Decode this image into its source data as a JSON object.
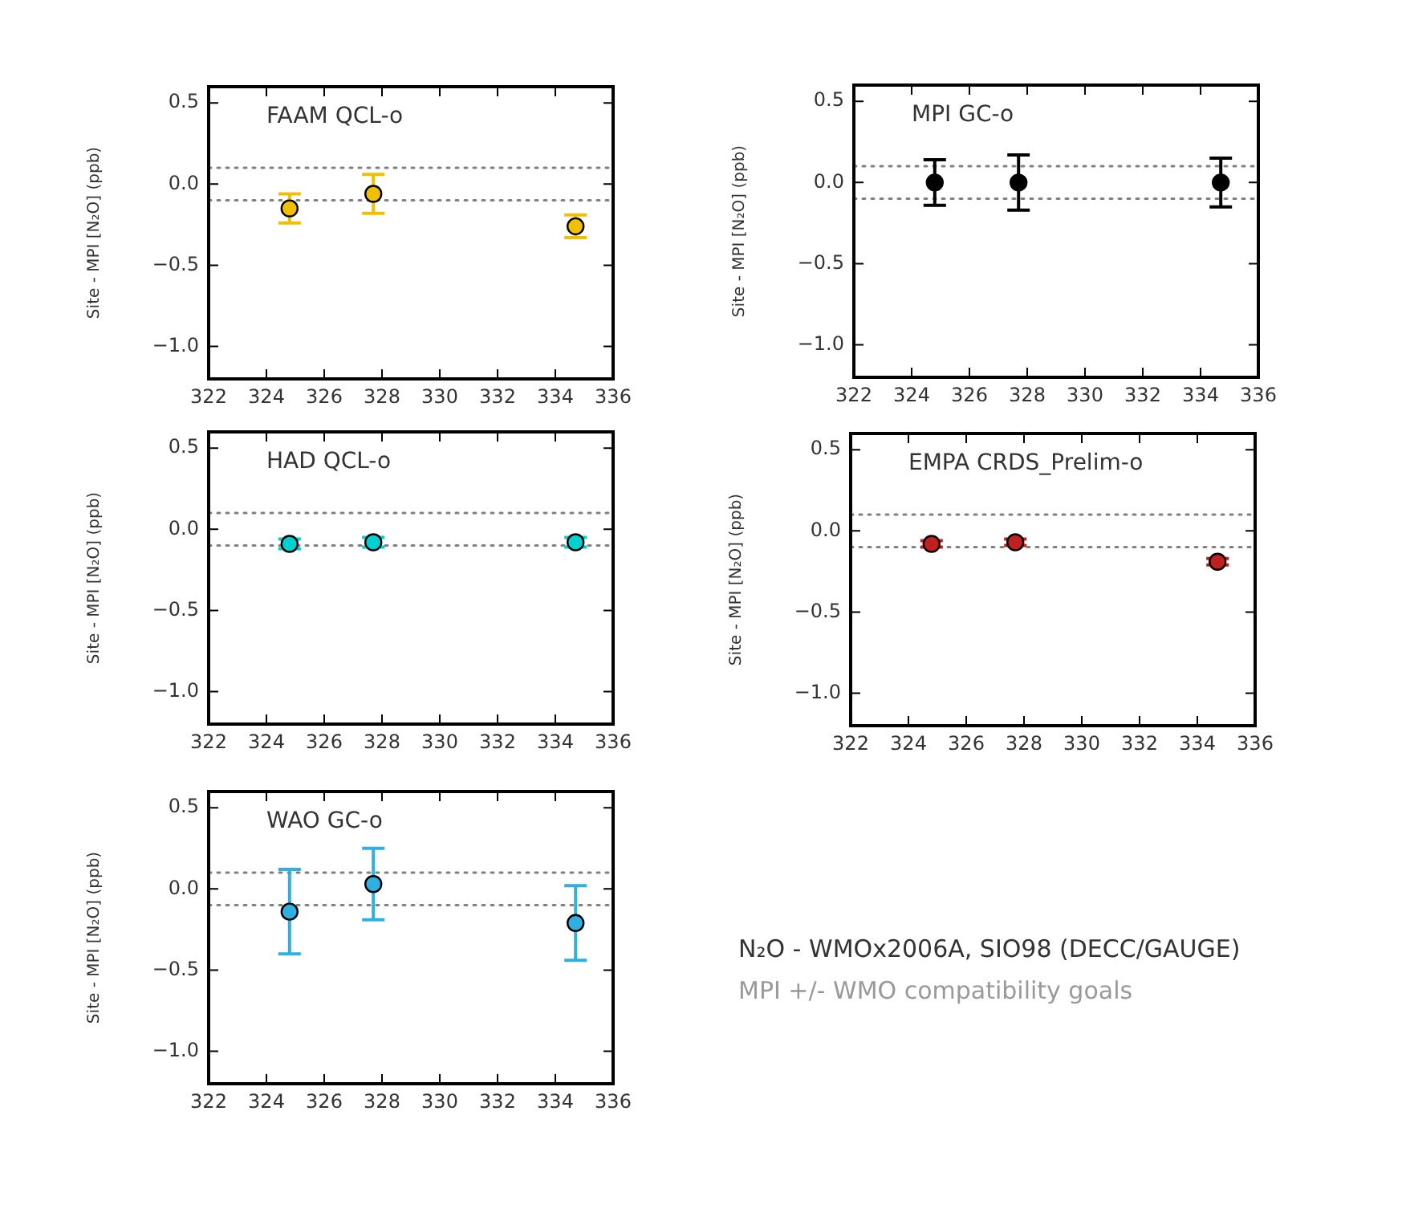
{
  "chart_data": [
    {
      "type": "scatter",
      "title": "FAAM QCL-o",
      "ylabel": "Site - MPI [N₂O] (ppb)",
      "x": [
        324.8,
        327.7,
        334.7
      ],
      "series": [
        {
          "color": "#f0c000",
          "values": [
            -0.15,
            -0.06,
            -0.26
          ],
          "errors": [
            0.09,
            0.12,
            0.07
          ]
        }
      ],
      "xlim": [
        322,
        336
      ],
      "xticks": [
        322,
        324,
        326,
        328,
        330,
        332,
        334,
        336
      ],
      "ylim": [
        -1.2,
        0.6
      ],
      "yticks": [
        {
          "value": -1,
          "label": "−1.0"
        },
        {
          "value": -0.5,
          "label": "−0.5"
        },
        {
          "value": 0,
          "label": "0.0"
        },
        {
          "value": 0.5,
          "label": "0.5"
        }
      ],
      "ref_lines": [
        {
          "axis": "y",
          "value": 0.1,
          "color": "#808080",
          "line_style": "dotted"
        },
        {
          "axis": "y",
          "value": -0.1,
          "color": "#808080",
          "line_style": "dotted"
        }
      ],
      "marker": "circle",
      "legend": false,
      "grid": false
    },
    {
      "type": "scatter",
      "title": "MPI GC-o",
      "ylabel": "Site - MPI [N₂O] (ppb)",
      "x": [
        324.8,
        327.7,
        334.7
      ],
      "series": [
        {
          "color": "#000000",
          "values": [
            0,
            0,
            0
          ],
          "errors": [
            0.14,
            0.17,
            0.15
          ]
        }
      ],
      "xlim": [
        322,
        336
      ],
      "xticks": [
        322,
        324,
        326,
        328,
        330,
        332,
        334,
        336
      ],
      "ylim": [
        -1.2,
        0.6
      ],
      "yticks": [
        {
          "value": -1,
          "label": "−1.0"
        },
        {
          "value": -0.5,
          "label": "−0.5"
        },
        {
          "value": 0,
          "label": "0.0"
        },
        {
          "value": 0.5,
          "label": "0.5"
        }
      ],
      "ref_lines": [
        {
          "axis": "y",
          "value": 0.1,
          "color": "#808080",
          "line_style": "dotted"
        },
        {
          "axis": "y",
          "value": -0.1,
          "color": "#808080",
          "line_style": "dotted"
        }
      ],
      "marker": "circle",
      "legend": false,
      "grid": false
    },
    {
      "type": "scatter",
      "title": "HAD QCL-o",
      "ylabel": "Site - MPI [N₂O] (ppb)",
      "x": [
        324.8,
        327.7,
        334.7
      ],
      "series": [
        {
          "color": "#00d0d0",
          "values": [
            -0.09,
            -0.08,
            -0.08
          ],
          "errors": [
            0.03,
            0.03,
            0.03
          ]
        }
      ],
      "xlim": [
        322,
        336
      ],
      "xticks": [
        322,
        324,
        326,
        328,
        330,
        332,
        334,
        336
      ],
      "ylim": [
        -1.2,
        0.6
      ],
      "yticks": [
        {
          "value": -1,
          "label": "−1.0"
        },
        {
          "value": -0.5,
          "label": "−0.5"
        },
        {
          "value": 0,
          "label": "0.0"
        },
        {
          "value": 0.5,
          "label": "0.5"
        }
      ],
      "ref_lines": [
        {
          "axis": "y",
          "value": 0.1,
          "color": "#808080",
          "line_style": "dotted"
        },
        {
          "axis": "y",
          "value": -0.1,
          "color": "#808080",
          "line_style": "dotted"
        }
      ],
      "marker": "circle",
      "legend": false,
      "grid": false
    },
    {
      "type": "scatter",
      "title": "EMPA CRDS_Prelim-o",
      "ylabel": "Site - MPI [N₂O] (ppb)",
      "x": [
        324.8,
        327.7,
        334.7
      ],
      "series": [
        {
          "color": "#c02020",
          "values": [
            -0.08,
            -0.07,
            -0.19
          ],
          "errors": [
            0.02,
            0.02,
            0.02
          ]
        }
      ],
      "xlim": [
        322,
        336
      ],
      "xticks": [
        322,
        324,
        326,
        328,
        330,
        332,
        334,
        336
      ],
      "ylim": [
        -1.2,
        0.6
      ],
      "yticks": [
        {
          "value": -1,
          "label": "−1.0"
        },
        {
          "value": -0.5,
          "label": "−0.5"
        },
        {
          "value": 0,
          "label": "0.0"
        },
        {
          "value": 0.5,
          "label": "0.5"
        }
      ],
      "ref_lines": [
        {
          "axis": "y",
          "value": 0.1,
          "color": "#808080",
          "line_style": "dotted"
        },
        {
          "axis": "y",
          "value": -0.1,
          "color": "#808080",
          "line_style": "dotted"
        }
      ],
      "marker": "circle",
      "legend": false,
      "grid": false
    },
    {
      "type": "scatter",
      "title": "WAO GC-o",
      "ylabel": "Site - MPI [N₂O] (ppb)",
      "x": [
        324.8,
        327.7,
        334.7
      ],
      "series": [
        {
          "color": "#30b0e0",
          "values": [
            -0.14,
            0.03,
            -0.21
          ],
          "errors": [
            0.26,
            0.22,
            0.23
          ]
        }
      ],
      "xlim": [
        322,
        336
      ],
      "xticks": [
        322,
        324,
        326,
        328,
        330,
        332,
        334,
        336
      ],
      "ylim": [
        -1.2,
        0.6
      ],
      "yticks": [
        {
          "value": -1,
          "label": "−1.0"
        },
        {
          "value": -0.5,
          "label": "−0.5"
        },
        {
          "value": 0,
          "label": "0.0"
        },
        {
          "value": 0.5,
          "label": "0.5"
        }
      ],
      "ref_lines": [
        {
          "axis": "y",
          "value": 0.1,
          "color": "#808080",
          "line_style": "dotted"
        },
        {
          "axis": "y",
          "value": -0.1,
          "color": "#808080",
          "line_style": "dotted"
        }
      ],
      "marker": "circle",
      "legend": false,
      "grid": false
    },
    {
      "type": "other",
      "title": "N₂O - WMOx2006A, SIO98 (DECC/GAUGE)",
      "subtitle": "MPI +/- WMO compatibility goals"
    }
  ]
}
